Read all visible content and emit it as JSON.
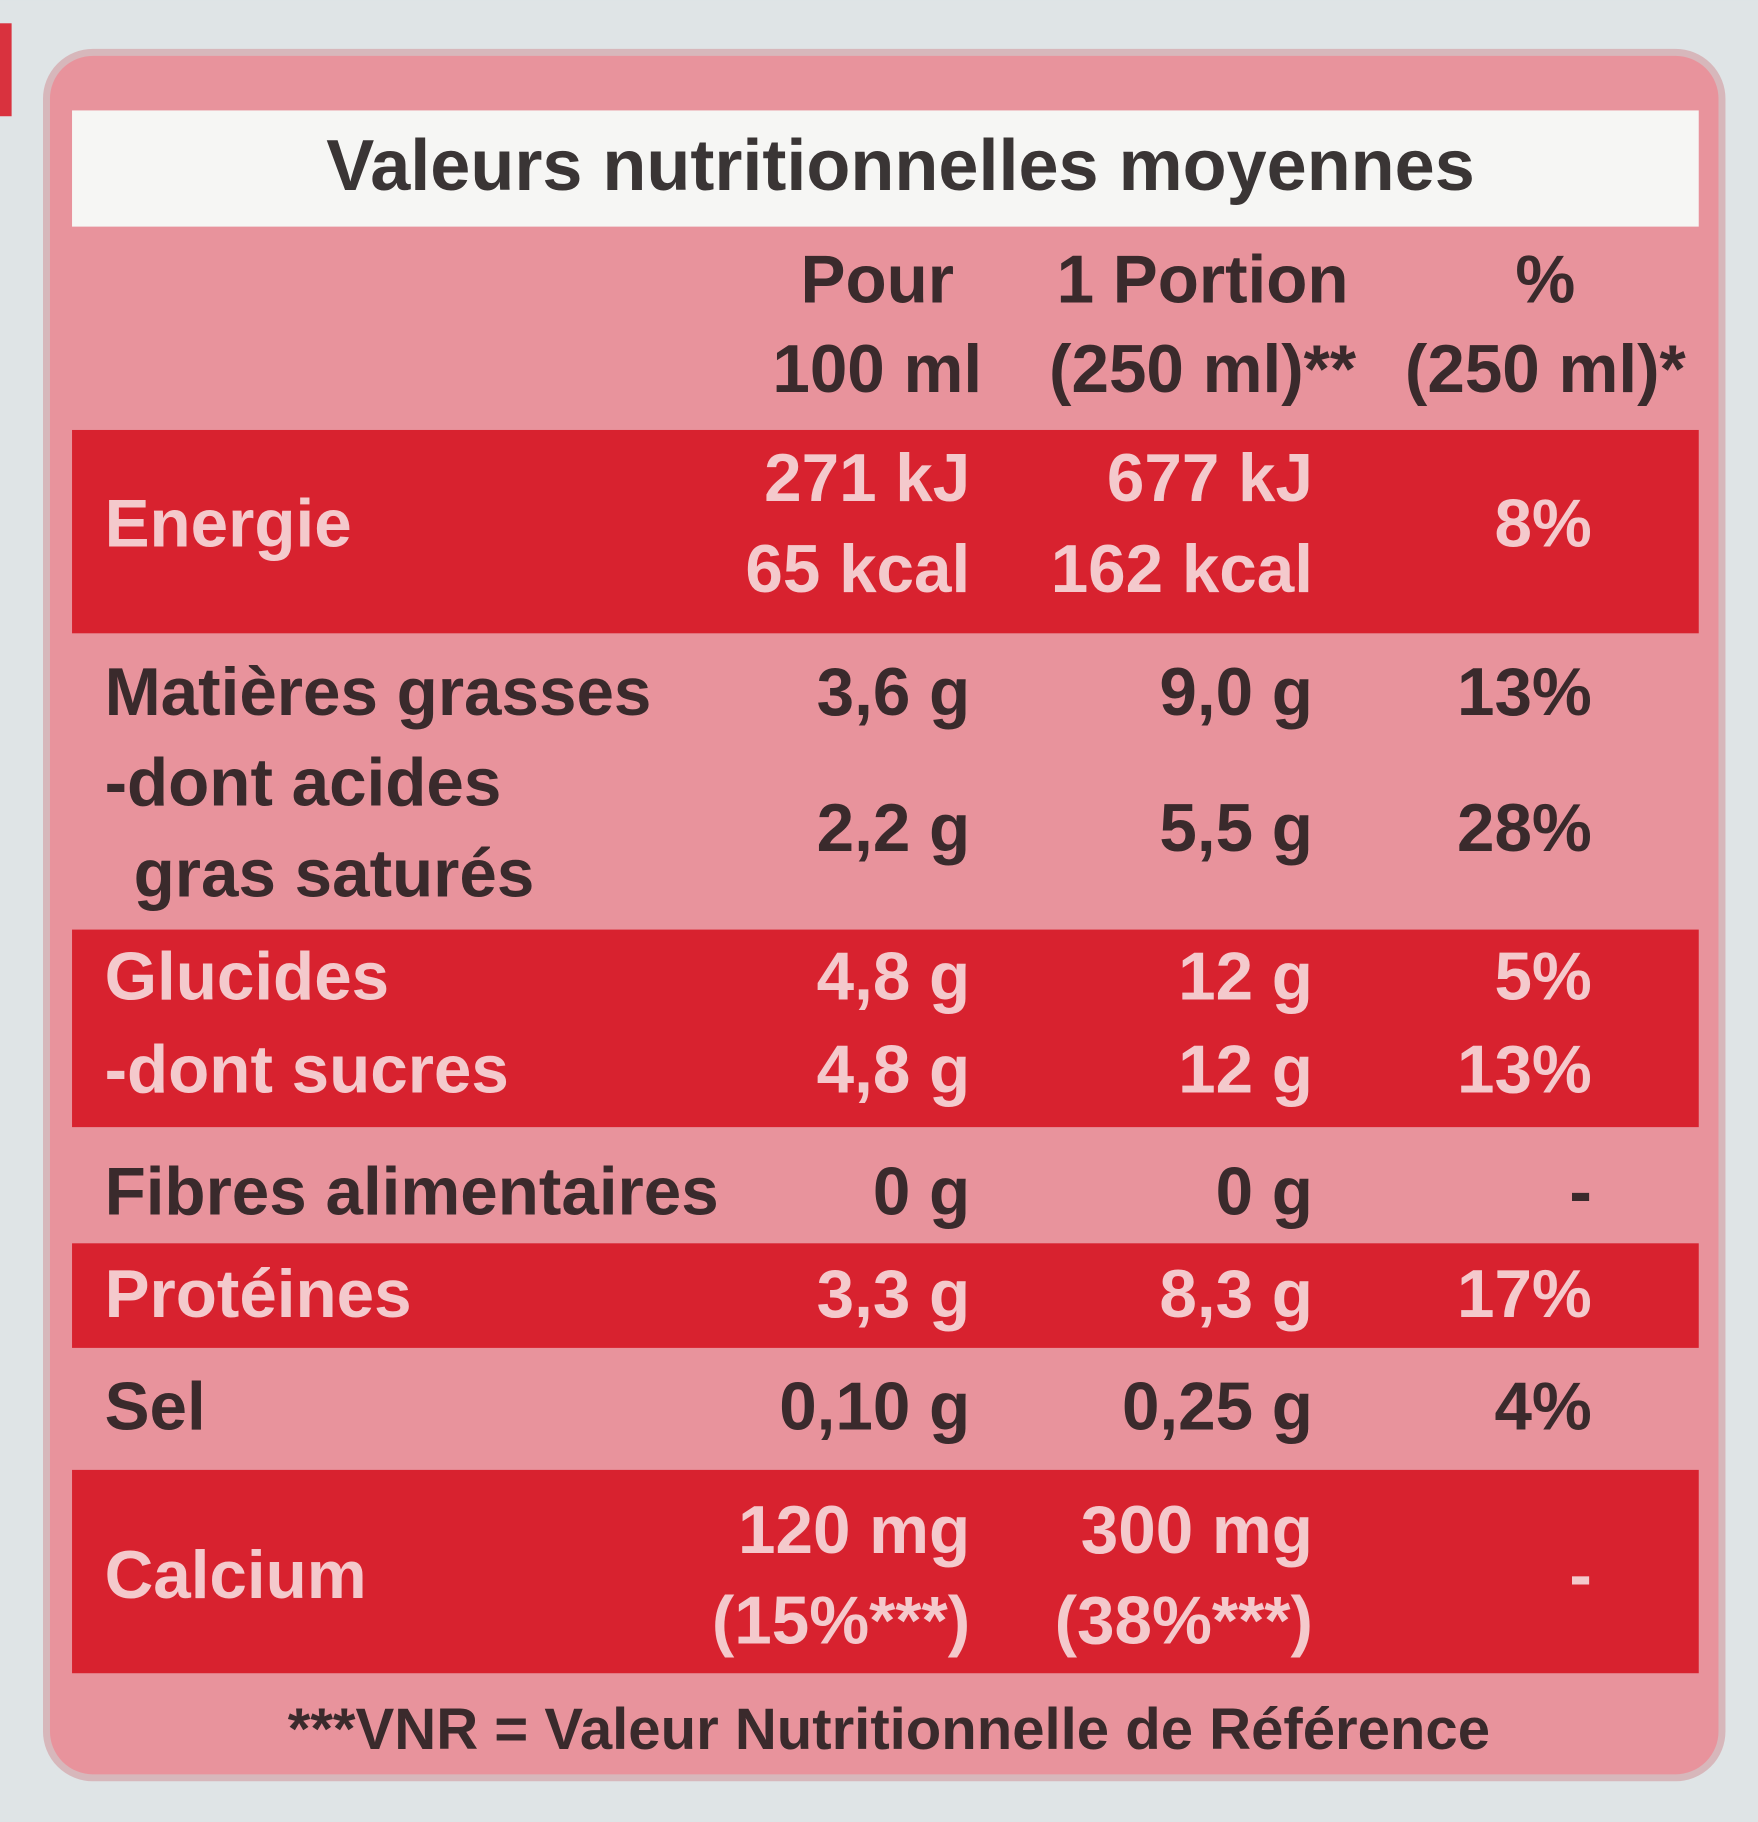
{
  "title": "Valeurs nutritionnelles moyennes",
  "header": [
    [
      "Pour",
      "100 ml"
    ],
    [
      "1 Portion",
      "(250 ml)**"
    ],
    [
      "%",
      "(250 ml)*"
    ]
  ],
  "rows": [
    {
      "label": [
        "Energie"
      ],
      "values": [
        [
          "271 kJ",
          "65 kcal"
        ],
        [
          "677 kJ",
          "162 kcal"
        ],
        [
          "8%"
        ]
      ]
    },
    {
      "label": [
        "Matières grasses"
      ],
      "values": [
        [
          "3,6 g"
        ],
        [
          "9,0 g"
        ],
        [
          "13%"
        ]
      ]
    },
    {
      "label": [
        "-dont acides",
        "gras saturés"
      ],
      "values": [
        [
          "2,2 g"
        ],
        [
          "5,5 g"
        ],
        [
          "28%"
        ]
      ]
    },
    {
      "label": [
        "Glucides"
      ],
      "values": [
        [
          "4,8 g"
        ],
        [
          "12 g"
        ],
        [
          "5%"
        ]
      ]
    },
    {
      "label": [
        "-dont sucres"
      ],
      "values": [
        [
          "4,8 g"
        ],
        [
          "12 g"
        ],
        [
          "13%"
        ]
      ]
    },
    {
      "label": [
        "Fibres alimentaires"
      ],
      "values": [
        [
          "0 g"
        ],
        [
          "0 g"
        ],
        [
          "-"
        ]
      ]
    },
    {
      "label": [
        "Protéines"
      ],
      "values": [
        [
          "3,3 g"
        ],
        [
          "8,3 g"
        ],
        [
          "17%"
        ]
      ]
    },
    {
      "label": [
        "Sel"
      ],
      "values": [
        [
          "0,10 g"
        ],
        [
          "0,25 g"
        ],
        [
          "4%"
        ]
      ]
    },
    {
      "label": [
        "Calcium"
      ],
      "values": [
        [
          "120 mg",
          "(15%***)"
        ],
        [
          "300 mg",
          "(38%***)"
        ],
        [
          "-"
        ]
      ]
    }
  ],
  "footnote": "***VNR = Valeur Nutritionnelle de Référence"
}
